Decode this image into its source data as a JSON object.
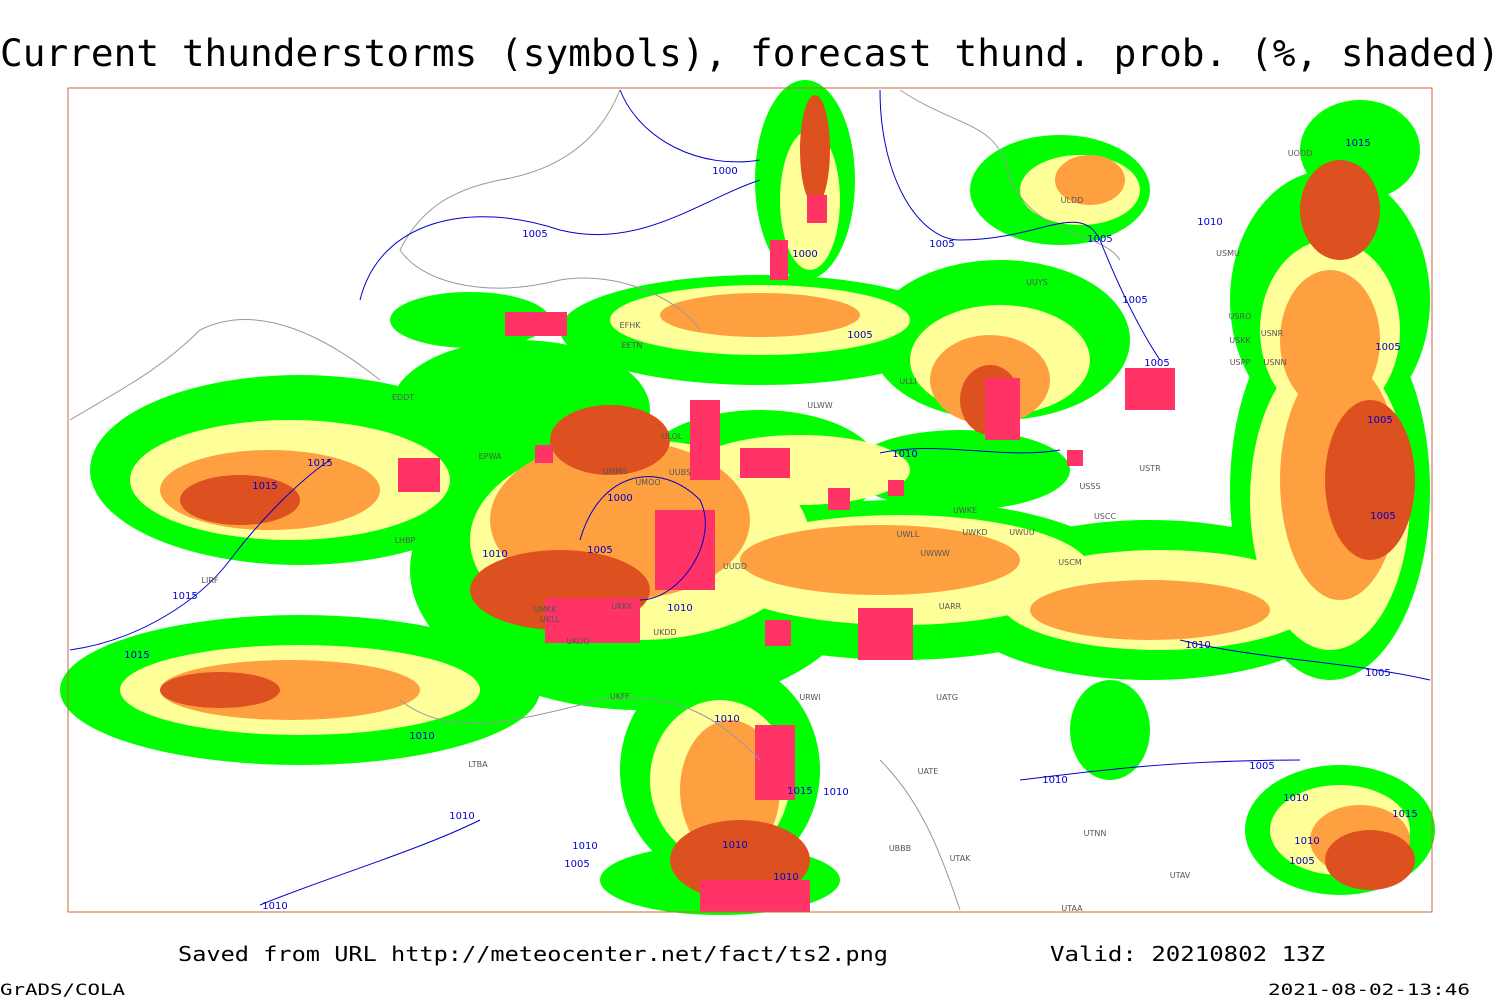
{
  "header": {
    "title": "Current thunderstorms (symbols), forecast thund. prob. (%, shaded)"
  },
  "map": {
    "isobar_labels": [
      1000,
      1005,
      1000,
      1005,
      1005,
      1005,
      1005,
      1005,
      1005,
      1005,
      1015,
      1010,
      1015,
      1015,
      1010,
      1000,
      1005,
      1010,
      1015,
      1015,
      1010,
      1005,
      1010,
      1005,
      1010,
      1010,
      1015,
      1010,
      1010,
      1005,
      1010,
      1010,
      1015,
      1010,
      1010,
      1010,
      1005,
      1010,
      1005,
      1010
    ],
    "station_codes": [
      "ULOL",
      "UUBS",
      "UMMS",
      "UMOO",
      "UUDD",
      "UKKK",
      "UKDD",
      "UKOO",
      "UKLL",
      "ULWW",
      "ULDD",
      "ULLI",
      "UUYS",
      "USRO",
      "USNR",
      "USKK",
      "USPP",
      "USNN",
      "USMU",
      "UODD",
      "USTR",
      "USSS",
      "USCC",
      "UWKE",
      "UWUU",
      "UWKD",
      "UWLL",
      "UWWW",
      "USCM",
      "UARR",
      "UATG",
      "UATE",
      "UTAK",
      "UTAV",
      "UTNN",
      "URWI",
      "UBBB",
      "UTAA",
      "UKFF",
      "LHBP",
      "LIRF",
      "LTBA",
      "EFHK",
      "EETN",
      "EDDT",
      "EPWA",
      "UMKK"
    ]
  },
  "footer": {
    "source": "Saved from URL http://meteocenter.net/fact/ts2.png",
    "valid": "Valid: 20210802 13Z",
    "software": "GrADS/COLA",
    "timestamp": "2021-08-02-13:46"
  }
}
